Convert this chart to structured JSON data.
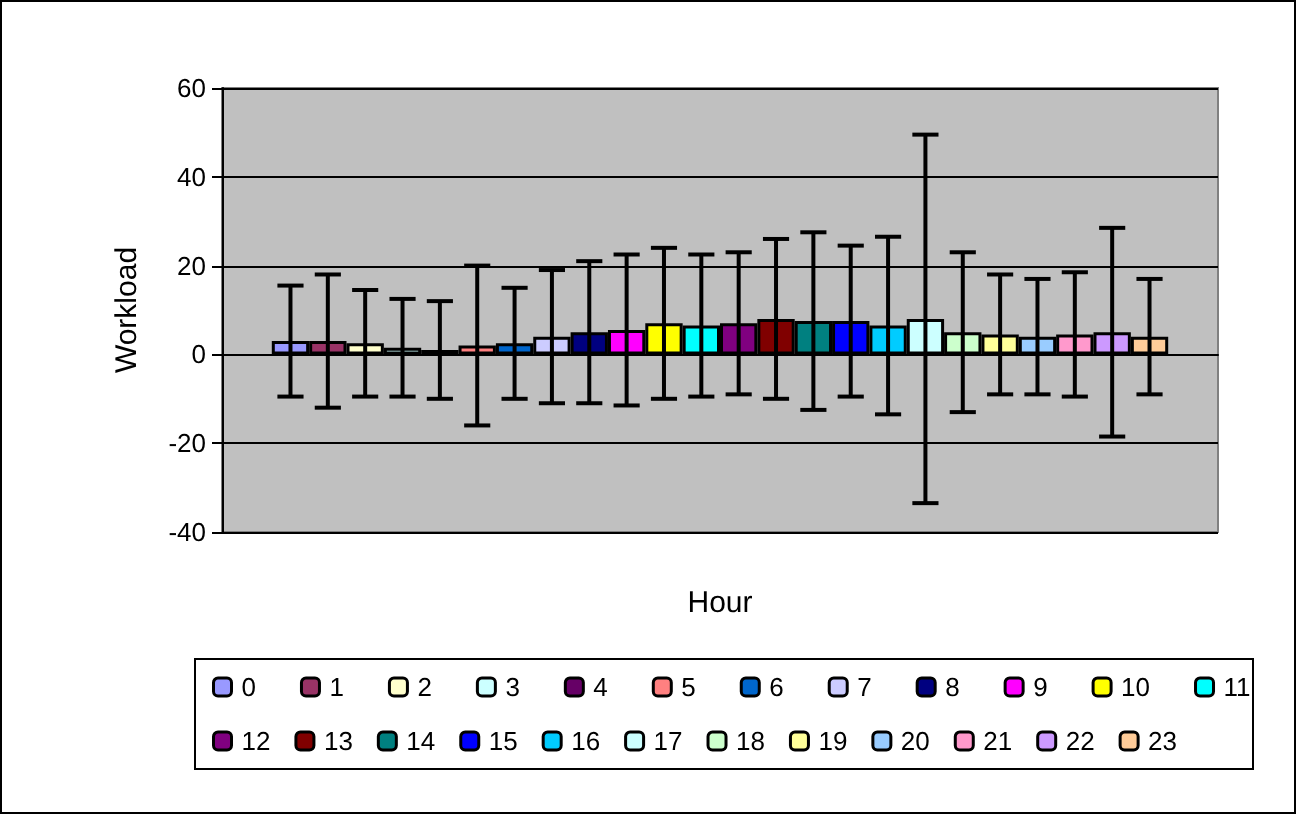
{
  "chart_data": {
    "type": "bar",
    "xlabel": "Hour",
    "ylabel": "Workload",
    "categories": [
      null
    ],
    "ylim": [
      -40,
      60
    ],
    "yticks": [
      -40,
      -20,
      0,
      20,
      40,
      60
    ],
    "grid": "y",
    "legend": "bottom",
    "series": [
      {
        "name": "0",
        "color": "#9999ff",
        "values": [
          3
        ],
        "errors": [
          12.5
        ]
      },
      {
        "name": "1",
        "color": "#993366",
        "values": [
          3
        ],
        "errors": [
          15
        ]
      },
      {
        "name": "2",
        "color": "#ffffcc",
        "values": [
          2.5
        ],
        "errors": [
          12
        ]
      },
      {
        "name": "3",
        "color": "#ccffff",
        "values": [
          1.5
        ],
        "errors": [
          11
        ]
      },
      {
        "name": "4",
        "color": "#660066",
        "values": [
          1
        ],
        "errors": [
          11
        ]
      },
      {
        "name": "5",
        "color": "#ff8080",
        "values": [
          2
        ],
        "errors": [
          18
        ]
      },
      {
        "name": "6",
        "color": "#0066cc",
        "values": [
          2.5
        ],
        "errors": [
          12.5
        ]
      },
      {
        "name": "7",
        "color": "#ccccff",
        "values": [
          4
        ],
        "errors": [
          15
        ]
      },
      {
        "name": "8",
        "color": "#000080",
        "values": [
          5
        ],
        "errors": [
          16
        ]
      },
      {
        "name": "9",
        "color": "#ff00ff",
        "values": [
          5.5
        ],
        "errors": [
          17
        ]
      },
      {
        "name": "10",
        "color": "#ffff00",
        "values": [
          7
        ],
        "errors": [
          17
        ]
      },
      {
        "name": "11",
        "color": "#00ffff",
        "values": [
          6.5
        ],
        "errors": [
          16
        ]
      },
      {
        "name": "12",
        "color": "#800080",
        "values": [
          7
        ],
        "errors": [
          16
        ]
      },
      {
        "name": "13",
        "color": "#800000",
        "values": [
          8
        ],
        "errors": [
          18
        ]
      },
      {
        "name": "14",
        "color": "#008080",
        "values": [
          7.5
        ],
        "errors": [
          20
        ]
      },
      {
        "name": "15",
        "color": "#0000ff",
        "values": [
          7.5
        ],
        "errors": [
          17
        ]
      },
      {
        "name": "16",
        "color": "#00ccff",
        "values": [
          6.5
        ],
        "errors": [
          20
        ]
      },
      {
        "name": "17",
        "color": "#ccffff",
        "values": [
          8
        ],
        "errors": [
          41.5
        ]
      },
      {
        "name": "18",
        "color": "#ccffcc",
        "values": [
          5
        ],
        "errors": [
          18
        ]
      },
      {
        "name": "19",
        "color": "#ffff99",
        "values": [
          4.5
        ],
        "errors": [
          13.5
        ]
      },
      {
        "name": "20",
        "color": "#99ccff",
        "values": [
          4
        ],
        "errors": [
          13
        ]
      },
      {
        "name": "21",
        "color": "#ff99cc",
        "values": [
          4.5
        ],
        "errors": [
          14
        ]
      },
      {
        "name": "22",
        "color": "#cc99ff",
        "values": [
          5
        ],
        "errors": [
          23.5
        ]
      },
      {
        "name": "23",
        "color": "#ffcc99",
        "values": [
          4
        ],
        "errors": [
          13
        ]
      }
    ]
  }
}
